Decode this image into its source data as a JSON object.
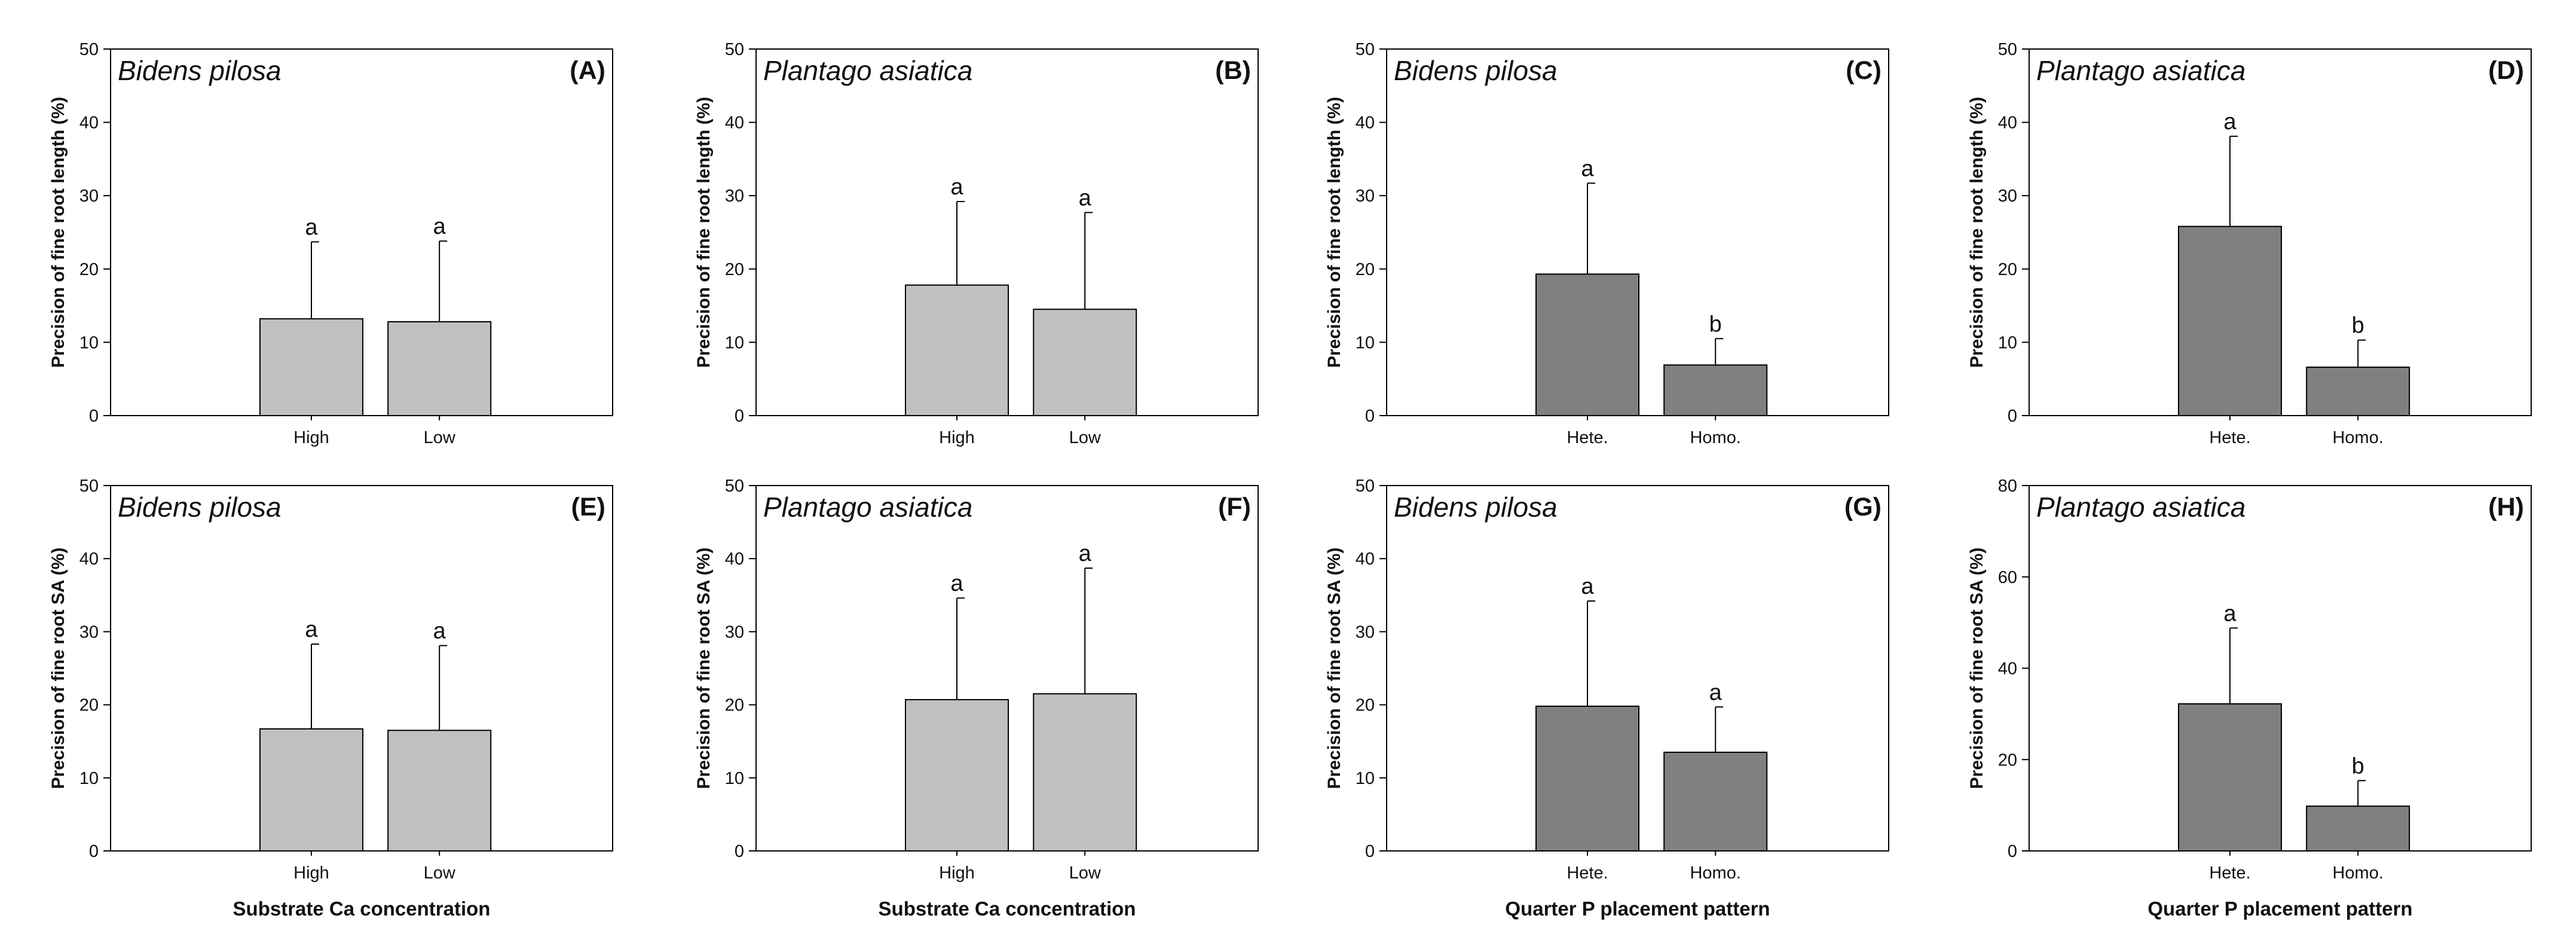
{
  "colors": {
    "light_bar": "#c0c0c0",
    "dark_bar": "#808080",
    "axis": "#000000"
  },
  "chart_data": [
    {
      "type": "bar",
      "id": "A",
      "label": "(A)",
      "species": "Bidens pilosa",
      "categories": [
        "High",
        "Low"
      ],
      "values": [
        13.2,
        12.8
      ],
      "errors": [
        10.5,
        11.0
      ],
      "significance": [
        "a",
        "a"
      ],
      "ylabel": "Precision of fine root length (%)",
      "xlabel": "",
      "ylim": [
        0,
        50
      ],
      "yticks": [
        0,
        10,
        20,
        30,
        40,
        50
      ],
      "bar_color": "light"
    },
    {
      "type": "bar",
      "id": "B",
      "label": "(B)",
      "species": "Plantago asiatica",
      "categories": [
        "High",
        "Low"
      ],
      "values": [
        17.8,
        14.5
      ],
      "errors": [
        11.4,
        13.2
      ],
      "significance": [
        "a",
        "a"
      ],
      "ylabel": "Precision of fine root length (%)",
      "xlabel": "",
      "ylim": [
        0,
        50
      ],
      "yticks": [
        0,
        10,
        20,
        30,
        40,
        50
      ],
      "bar_color": "light"
    },
    {
      "type": "bar",
      "id": "C",
      "label": "(C)",
      "species": "Bidens pilosa",
      "categories": [
        "Hete.",
        "Homo."
      ],
      "values": [
        19.3,
        6.9
      ],
      "errors": [
        12.4,
        3.6
      ],
      "significance": [
        "a",
        "b"
      ],
      "ylabel": "Precision of fine root length (%)",
      "xlabel": "",
      "ylim": [
        0,
        50
      ],
      "yticks": [
        0,
        10,
        20,
        30,
        40,
        50
      ],
      "bar_color": "dark"
    },
    {
      "type": "bar",
      "id": "D",
      "label": "(D)",
      "species": "Plantago asiatica",
      "categories": [
        "Hete.",
        "Homo."
      ],
      "values": [
        25.8,
        6.6
      ],
      "errors": [
        12.3,
        3.7
      ],
      "significance": [
        "a",
        "b"
      ],
      "ylabel": "Precision of fine root length (%)",
      "xlabel": "",
      "ylim": [
        0,
        50
      ],
      "yticks": [
        0,
        10,
        20,
        30,
        40,
        50
      ],
      "bar_color": "dark"
    },
    {
      "type": "bar",
      "id": "E",
      "label": "(E)",
      "species": "Bidens pilosa",
      "categories": [
        "High",
        "Low"
      ],
      "values": [
        16.7,
        16.5
      ],
      "errors": [
        11.6,
        11.6
      ],
      "significance": [
        "a",
        "a"
      ],
      "ylabel": "Precision of fine root SA (%)",
      "xlabel": "Substrate Ca concentration",
      "ylim": [
        0,
        50
      ],
      "yticks": [
        0,
        10,
        20,
        30,
        40,
        50
      ],
      "bar_color": "light"
    },
    {
      "type": "bar",
      "id": "F",
      "label": "(F)",
      "species": "Plantago asiatica",
      "categories": [
        "High",
        "Low"
      ],
      "values": [
        20.7,
        21.5
      ],
      "errors": [
        13.9,
        17.2
      ],
      "significance": [
        "a",
        "a"
      ],
      "ylabel": "Precision of fine root SA (%)",
      "xlabel": "Substrate Ca concentration",
      "ylim": [
        0,
        50
      ],
      "yticks": [
        0,
        10,
        20,
        30,
        40,
        50
      ],
      "bar_color": "light"
    },
    {
      "type": "bar",
      "id": "G",
      "label": "(G)",
      "species": "Bidens pilosa",
      "categories": [
        "Hete.",
        "Homo."
      ],
      "values": [
        19.8,
        13.5
      ],
      "errors": [
        14.4,
        6.2
      ],
      "significance": [
        "a",
        "a"
      ],
      "ylabel": "Precision of fine root SA (%)",
      "xlabel": "Quarter P placement pattern",
      "ylim": [
        0,
        50
      ],
      "yticks": [
        0,
        10,
        20,
        30,
        40,
        50
      ],
      "bar_color": "dark"
    },
    {
      "type": "bar",
      "id": "H",
      "label": "(H)",
      "species": "Plantago asiatica",
      "categories": [
        "Hete.",
        "Homo."
      ],
      "values": [
        32.2,
        9.8
      ],
      "errors": [
        16.6,
        5.6
      ],
      "significance": [
        "a",
        "b"
      ],
      "ylabel": "Precision of fine root SA (%)",
      "xlabel": "Quarter P placement pattern",
      "ylim": [
        0,
        80
      ],
      "yticks": [
        0,
        20,
        40,
        60,
        80
      ],
      "bar_color": "dark"
    }
  ]
}
